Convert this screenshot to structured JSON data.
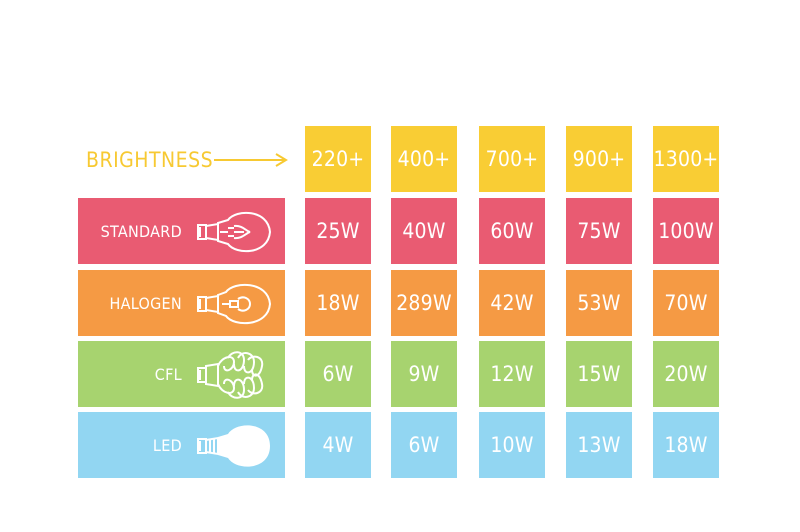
{
  "chart_data": {
    "type": "table",
    "header_label": "BRIGHTNESS",
    "columns": [
      "220+",
      "400+",
      "700+",
      "900+",
      "1300+"
    ],
    "rows": [
      {
        "label": "STANDARD",
        "icon": "incandescent-bulb-icon",
        "color": "#e95b72",
        "values": [
          "25W",
          "40W",
          "60W",
          "75W",
          "100W"
        ]
      },
      {
        "label": "HALOGEN",
        "icon": "halogen-bulb-icon",
        "color": "#f59a44",
        "values": [
          "18W",
          "289W",
          "42W",
          "53W",
          "70W"
        ]
      },
      {
        "label": "CFL",
        "icon": "cfl-spiral-bulb-icon",
        "color": "#a7d36f",
        "values": [
          "6W",
          "9W",
          "12W",
          "15W",
          "20W"
        ]
      },
      {
        "label": "LED",
        "icon": "led-bulb-icon",
        "color": "#92d6f2",
        "values": [
          "4W",
          "6W",
          "10W",
          "13W",
          "18W"
        ]
      }
    ],
    "colors": {
      "header": "#f9cd34",
      "label_text": "#f7c932"
    }
  }
}
